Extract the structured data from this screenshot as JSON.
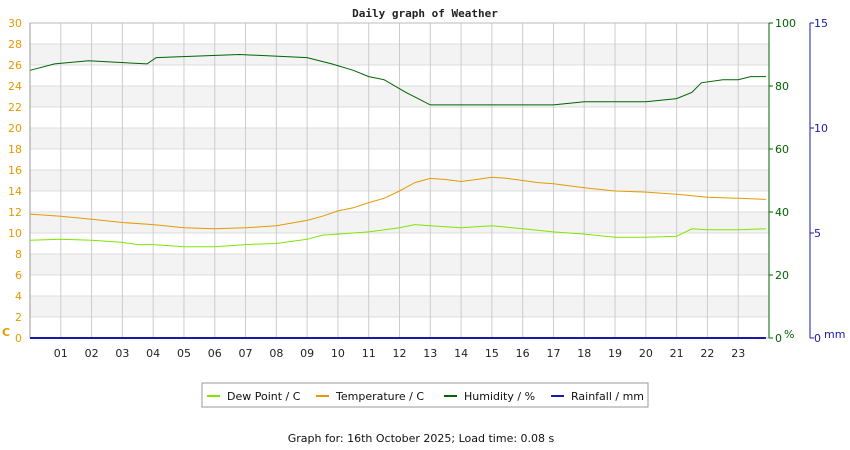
{
  "chart_data": {
    "type": "line",
    "title": "Daily graph of Weather",
    "footer": "Graph for: 16th October 2025; Load time: 0.08 s",
    "x_ticks": [
      "01",
      "02",
      "03",
      "04",
      "05",
      "06",
      "07",
      "08",
      "09",
      "10",
      "11",
      "12",
      "13",
      "14",
      "15",
      "16",
      "17",
      "18",
      "19",
      "20",
      "21",
      "22",
      "23"
    ],
    "xlim": [
      0,
      24
    ],
    "axes": {
      "left": {
        "unit": "C",
        "ylim": [
          0,
          30
        ],
        "ticks": [
          "0",
          "2",
          "4",
          "6",
          "8",
          "10",
          "12",
          "14",
          "16",
          "18",
          "20",
          "22",
          "24",
          "26",
          "28",
          "30"
        ]
      },
      "mid": {
        "unit": "%",
        "ylim": [
          0,
          100
        ],
        "ticks": [
          "0",
          "20",
          "40",
          "60",
          "80",
          "100"
        ]
      },
      "right": {
        "unit": "mm",
        "ylim": [
          0,
          15
        ],
        "ticks": [
          "0",
          "5",
          "10",
          "15"
        ]
      }
    },
    "grid": true,
    "legend_position": "bottom",
    "series": [
      {
        "name": "Dew Point / C",
        "axis": "left",
        "color": "#7ee600",
        "points": [
          [
            0,
            9.3
          ],
          [
            1,
            9.4
          ],
          [
            2,
            9.3
          ],
          [
            3,
            9.1
          ],
          [
            3.5,
            8.9
          ],
          [
            4,
            8.9
          ],
          [
            5,
            8.7
          ],
          [
            6,
            8.7
          ],
          [
            7,
            8.9
          ],
          [
            8,
            9.0
          ],
          [
            9,
            9.4
          ],
          [
            9.5,
            9.8
          ],
          [
            10,
            9.9
          ],
          [
            11,
            10.1
          ],
          [
            12,
            10.5
          ],
          [
            12.5,
            10.8
          ],
          [
            13,
            10.7
          ],
          [
            14,
            10.5
          ],
          [
            15,
            10.7
          ],
          [
            16,
            10.4
          ],
          [
            17,
            10.1
          ],
          [
            18,
            9.9
          ],
          [
            19,
            9.6
          ],
          [
            20,
            9.6
          ],
          [
            21,
            9.7
          ],
          [
            21.5,
            10.4
          ],
          [
            22,
            10.3
          ],
          [
            23,
            10.3
          ],
          [
            23.9,
            10.4
          ]
        ]
      },
      {
        "name": "Temperature / C",
        "axis": "left",
        "color": "#e59a00",
        "points": [
          [
            0,
            11.8
          ],
          [
            1,
            11.6
          ],
          [
            2,
            11.3
          ],
          [
            3,
            11.0
          ],
          [
            4,
            10.8
          ],
          [
            5,
            10.5
          ],
          [
            6,
            10.4
          ],
          [
            7,
            10.5
          ],
          [
            8,
            10.7
          ],
          [
            9,
            11.2
          ],
          [
            9.5,
            11.6
          ],
          [
            10,
            12.1
          ],
          [
            10.5,
            12.4
          ],
          [
            11,
            12.9
          ],
          [
            11.5,
            13.3
          ],
          [
            12,
            14.0
          ],
          [
            12.5,
            14.8
          ],
          [
            13,
            15.2
          ],
          [
            13.5,
            15.1
          ],
          [
            14,
            14.9
          ],
          [
            14.5,
            15.1
          ],
          [
            15,
            15.3
          ],
          [
            15.5,
            15.2
          ],
          [
            16,
            15.0
          ],
          [
            16.5,
            14.8
          ],
          [
            17,
            14.7
          ],
          [
            18,
            14.3
          ],
          [
            19,
            14.0
          ],
          [
            20,
            13.9
          ],
          [
            21,
            13.7
          ],
          [
            22,
            13.4
          ],
          [
            23,
            13.3
          ],
          [
            23.9,
            13.2
          ]
        ]
      },
      {
        "name": "Humidity / %",
        "axis": "mid",
        "color": "#006400",
        "points": [
          [
            0,
            85
          ],
          [
            0.8,
            87
          ],
          [
            1.9,
            88
          ],
          [
            3.8,
            87
          ],
          [
            4.1,
            89
          ],
          [
            6.8,
            90
          ],
          [
            9,
            89
          ],
          [
            9.8,
            87
          ],
          [
            10.5,
            85
          ],
          [
            11,
            83
          ],
          [
            11.5,
            82
          ],
          [
            12.2,
            78
          ],
          [
            12.6,
            76
          ],
          [
            13,
            74
          ],
          [
            14,
            74
          ],
          [
            15,
            74
          ],
          [
            16,
            74
          ],
          [
            17,
            74
          ],
          [
            18,
            75
          ],
          [
            19,
            75
          ],
          [
            20,
            75
          ],
          [
            21,
            76
          ],
          [
            21.5,
            78
          ],
          [
            21.8,
            81
          ],
          [
            22.5,
            82
          ],
          [
            23,
            82
          ],
          [
            23.4,
            83
          ],
          [
            23.9,
            83
          ]
        ]
      },
      {
        "name": "Rainfall / mm",
        "axis": "right",
        "color": "#1a1aa6",
        "points": [
          [
            0,
            0
          ],
          [
            23.9,
            0
          ]
        ]
      }
    ]
  }
}
